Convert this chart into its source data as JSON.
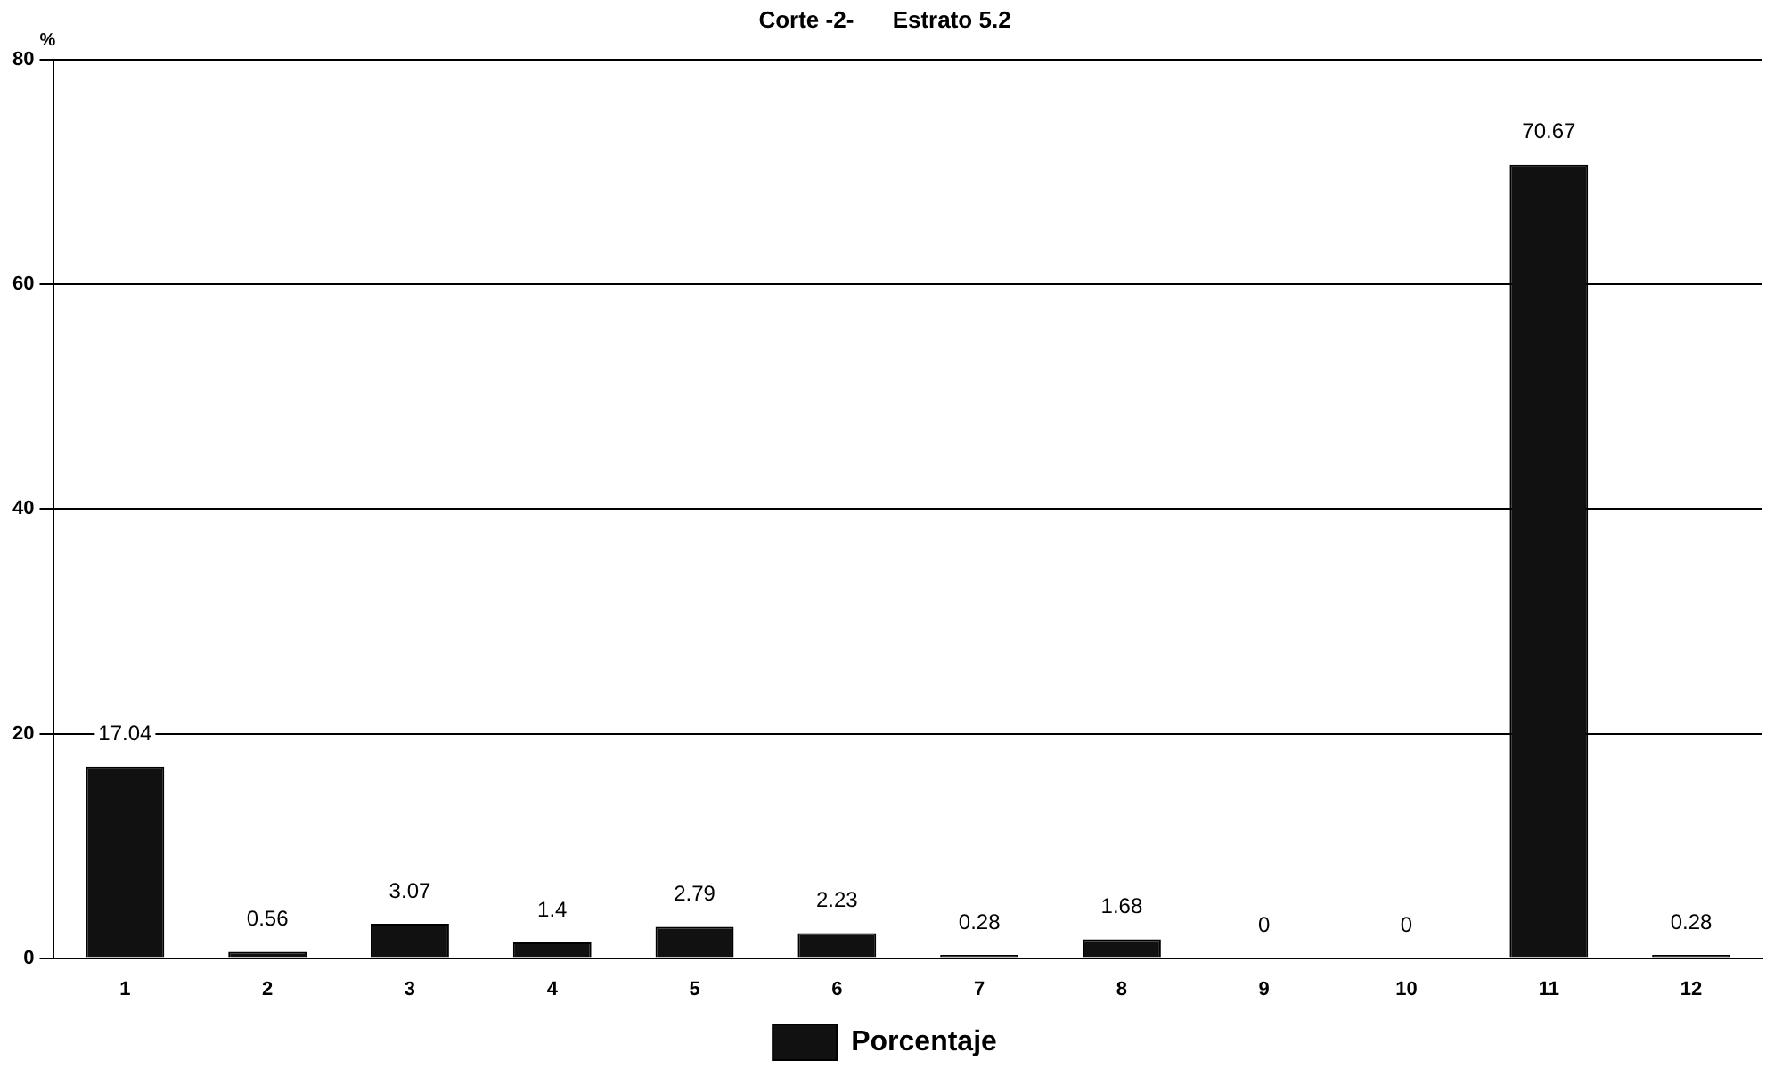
{
  "chart_data": {
    "type": "bar",
    "title": "Corte -2-      Estrato 5.2",
    "ylabel": "%",
    "categories": [
      "1",
      "2",
      "3",
      "4",
      "5",
      "6",
      "7",
      "8",
      "9",
      "10",
      "11",
      "12"
    ],
    "series": [
      {
        "name": "Porcentaje",
        "color": "#111111",
        "values": [
          17.04,
          0.56,
          3.07,
          1.4,
          2.79,
          2.23,
          0.28,
          1.68,
          0,
          0,
          70.67,
          0.28
        ]
      }
    ],
    "ylim": [
      0,
      80
    ],
    "yticks": [
      0,
      20,
      40,
      60,
      80
    ],
    "grid": "y",
    "legend": "bottom",
    "data_labels": true
  }
}
